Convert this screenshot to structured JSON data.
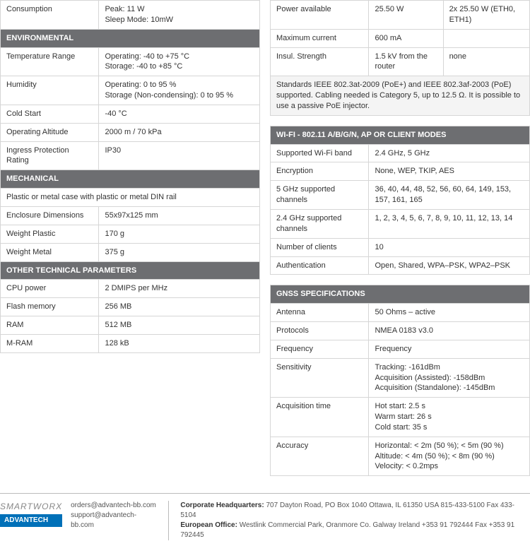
{
  "left": {
    "power_consumption": {
      "label": "Consumption",
      "value": "Peak: 11 W\nSleep Mode: 10mW"
    },
    "environmental_hdr": "ENVIRONMENTAL",
    "env": [
      {
        "label": "Temperature Range",
        "value": "Operating: -40 to +75 °C\nStorage:  -40 to +85 °C"
      },
      {
        "label": "Humidity",
        "value": "Operating: 0 to 95 %\nStorage (Non-condensing):  0 to 95 %"
      },
      {
        "label": "Cold Start",
        "value": "-40 °C"
      },
      {
        "label": "Operating Altitude",
        "value": "2000 m / 70 kPa"
      },
      {
        "label": "Ingress Protection Rating",
        "value": "IP30"
      }
    ],
    "mechanical_hdr": "MECHANICAL",
    "mech_note": "Plastic or metal case with plastic or metal DIN rail",
    "mech": [
      {
        "label": "Enclosure Dimensions",
        "value": "55x97x125 mm"
      },
      {
        "label": "Weight Plastic",
        "value": "170 g"
      },
      {
        "label": "Weight Metal",
        "value": "375 g"
      }
    ],
    "other_hdr": "OTHER TECHNICAL PARAMETERS",
    "other": [
      {
        "label": "CPU power",
        "value": "2 DMIPS per MHz"
      },
      {
        "label": "Flash memory",
        "value": "256 MB"
      },
      {
        "label": "RAM",
        "value": "512 MB"
      },
      {
        "label": "M-RAM",
        "value": "128 kB"
      }
    ]
  },
  "right": {
    "poe": [
      {
        "label": "Power available",
        "value1": "25.50 W",
        "value2": "2x 25.50 W (ETH0, ETH1)"
      },
      {
        "label": "Maximum current",
        "value1": "600 mA",
        "value2": ""
      },
      {
        "label": "Insul. Strength",
        "value1": "1.5 kV from the router",
        "value2": "none"
      }
    ],
    "poe_note": "Standards IEEE 802.3at-2009 (PoE+) and IEEE 802.3af-2003 (PoE) supported. Cabling needed is Category 5, up to 12.5 Ω. It is possible to use a passive PoE injector.",
    "wifi_hdr": "WI-FI - 802.11 A/B/G/N, AP OR CLIENT MODES",
    "wifi": [
      {
        "label": "Supported Wi-Fi band",
        "value": "2.4 GHz, 5 GHz"
      },
      {
        "label": "Encryption",
        "value": "None, WEP, TKIP, AES"
      },
      {
        "label": "5 GHz supported channels",
        "value": "36, 40, 44, 48, 52, 56, 60, 64, 149, 153, 157, 161, 165"
      },
      {
        "label": "2.4 GHz supported channels",
        "value": "1, 2, 3, 4, 5, 6, 7, 8, 9, 10, 11, 12, 13, 14"
      },
      {
        "label": "Number of clients",
        "value": "10"
      },
      {
        "label": "Authentication",
        "value": "Open, Shared, WPA–PSK, WPA2–PSK"
      }
    ],
    "gnss_hdr": "GNSS SPECIFICATIONS",
    "gnss": [
      {
        "label": "Antenna",
        "value": "50 Ohms – active"
      },
      {
        "label": "Protocols",
        "value": "NMEA 0183 v3.0"
      },
      {
        "label": "Frequency",
        "value": "Frequency"
      },
      {
        "label": "Sensitivity",
        "value": "Tracking: -161dBm\nAcquisition (Assisted): -158dBm\nAcquisition (Standalone): -145dBm"
      },
      {
        "label": "Acquisition time",
        "value": "Hot start: 2.5 s\nWarm start: 26 s\nCold start: 35 s"
      },
      {
        "label": "Accuracy",
        "value": "Horizontal: < 2m (50 %); < 5m (90 %)\nAltitude: < 4m (50 %); < 8m (90 %)\nVelocity: < 0.2mps"
      }
    ]
  },
  "footer": {
    "brand1": "SMARTWORX",
    "brand2": "ADVANTECH",
    "emails": "orders@advantech-bb.com\nsupport@advantech-bb.com",
    "hq_label": "Corporate Headquarters:",
    "hq": "707 Dayton Road, PO Box 1040 Ottawa, IL 61350 USA   815-433-5100   Fax 433-5104",
    "eu_label": "European Office:",
    "eu": "Westlink Commercial Park, Oranmore Co. Galway Ireland  +353 91 792444   Fax +353 91 792445"
  }
}
